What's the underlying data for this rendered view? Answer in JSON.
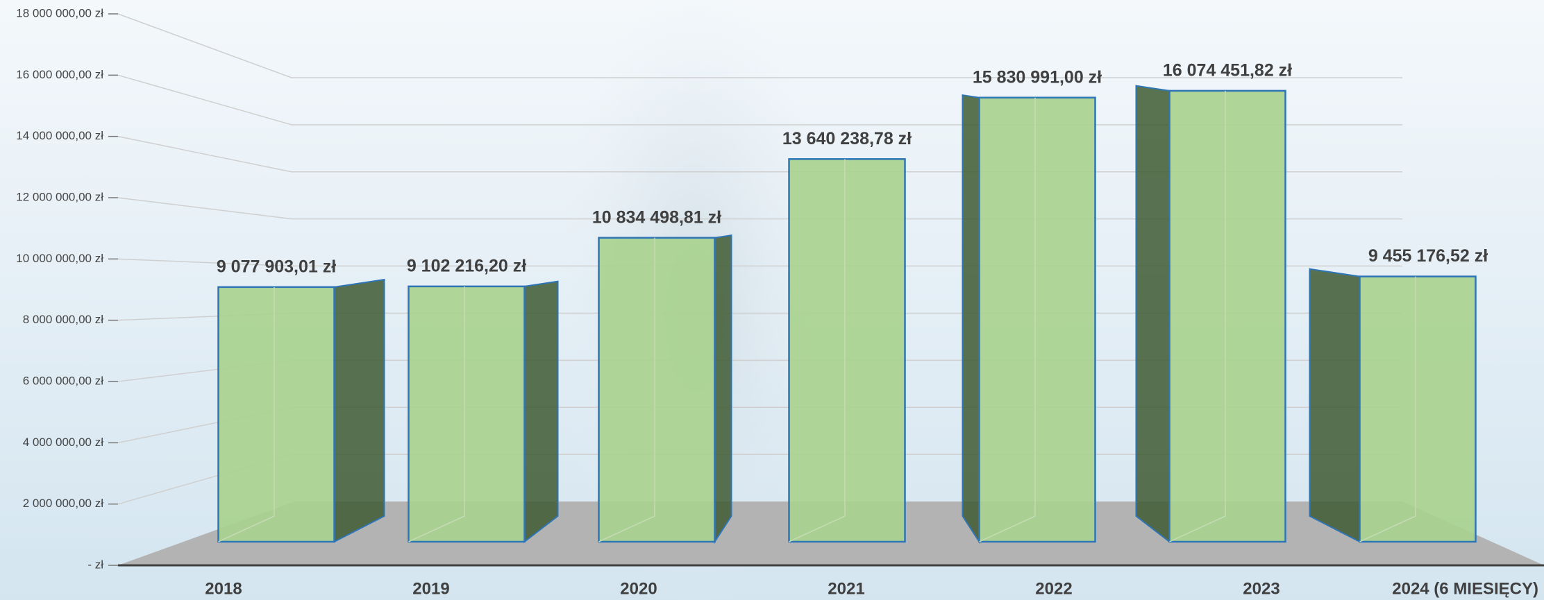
{
  "chart_data": {
    "type": "bar3d",
    "categories": [
      "2018",
      "2019",
      "2020",
      "2021",
      "2022",
      "2023",
      "2024 (6 MIESIĘCY)"
    ],
    "values": [
      9077903.01,
      9102216.2,
      10834498.81,
      13640238.78,
      15830991.0,
      16074451.82,
      9455176.52
    ],
    "value_labels": [
      "9 077 903,01 zł",
      "9 102 216,20 zł",
      "10 834 498,81 zł",
      "13 640 238,78 zł",
      "15 830 991,00 zł",
      "16 074 451,82 zł",
      "9 455 176,52 zł"
    ],
    "color": "#a9d18e",
    "ylim": [
      0,
      18000000
    ],
    "yticks": [
      {
        "value": 0,
        "label": "-  zł"
      },
      {
        "value": 2000000,
        "label": "2 000 000,00 zł"
      },
      {
        "value": 4000000,
        "label": "4 000 000,00 zł"
      },
      {
        "value": 6000000,
        "label": "6 000 000,00 zł"
      },
      {
        "value": 8000000,
        "label": "8 000 000,00 zł"
      },
      {
        "value": 10000000,
        "label": "10 000 000,00 zł"
      },
      {
        "value": 12000000,
        "label": "12 000 000,00 zł"
      },
      {
        "value": 14000000,
        "label": "14 000 000,00 zł"
      },
      {
        "value": 16000000,
        "label": "16 000 000,00 zł"
      },
      {
        "value": 18000000,
        "label": "18 000 000,00 zł"
      }
    ],
    "grid": true
  }
}
